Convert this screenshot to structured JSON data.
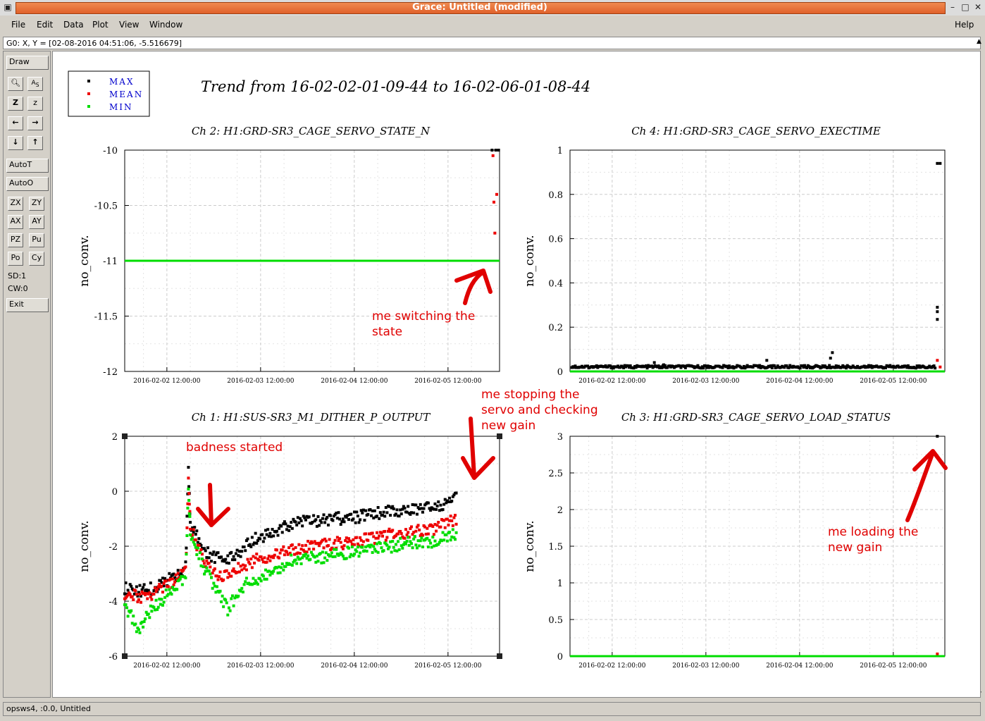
{
  "window": {
    "title": "Grace: Untitled (modified)"
  },
  "menu": {
    "file": "File",
    "edit": "Edit",
    "data": "Data",
    "plot": "Plot",
    "view": "View",
    "window": "Window",
    "help": "Help"
  },
  "locator": "G0: X, Y = [02-08-2016 04:51:06, -5.516679]",
  "tools": {
    "draw": "Draw",
    "autot": "AutoT",
    "autoo": "AutoO",
    "exit": "Exit",
    "zx": "ZX",
    "zy": "ZY",
    "ax": "AX",
    "ay": "AY",
    "pz": "PZ",
    "pu": "Pu",
    "po": "Po",
    "cy": "Cy",
    "sd": "SD:1",
    "cw": "CW:0"
  },
  "status": "opsws4, :0.0, Untitled",
  "colors": {
    "max": "#000000",
    "mean": "#ee0000",
    "min": "#00dd00",
    "legend_text": "#0000cc",
    "annotation": "#e00000"
  },
  "legend": [
    "MAX",
    "MEAN",
    "MIN"
  ],
  "main_title": "Trend from 16-02-02-01-09-44 to 16-02-06-01-08-44",
  "annotations": {
    "a1": "me switching the\nstate",
    "a2": "badness started",
    "a3": "me stopping the\nservo and checking\nnew gain",
    "a4": "me loading the\nnew gain"
  },
  "chart_data": [
    {
      "type": "scatter",
      "title": "Ch 2: H1:GRD-SR3_CAGE_SERVO_STATE_N",
      "ylabel": "no_conv.",
      "ylim": [
        -12,
        -10
      ],
      "yticks": [
        "-10",
        "-10.5",
        "-11",
        "-11.5",
        "-12"
      ],
      "xticks": [
        "2016-02-02 12:00:00",
        "2016-02-03 12:00:00",
        "2016-02-04 12:00:00",
        "2016-02-05 12:00:00"
      ],
      "grid": true,
      "series": [
        {
          "name": "MAX",
          "points": [
            [
              3.92,
              -10
            ],
            [
              3.96,
              -10
            ],
            [
              3.99,
              -10
            ]
          ]
        },
        {
          "name": "MEAN",
          "points": [
            [
              3.93,
              -10.05
            ],
            [
              3.94,
              -10.47
            ],
            [
              3.95,
              -10.75
            ],
            [
              3.97,
              -10.4
            ]
          ]
        },
        {
          "name": "MIN",
          "line": -11
        }
      ]
    },
    {
      "type": "scatter",
      "title": "Ch 4: H1:GRD-SR3_CAGE_SERVO_EXECTIME",
      "ylabel": "no_conv.",
      "ylim": [
        0,
        1
      ],
      "yticks": [
        "1",
        "0.8",
        "0.6",
        "0.4",
        "0.2",
        "0"
      ],
      "xticks": [
        "2016-02-02 12:00:00",
        "2016-02-03 12:00:00",
        "2016-02-04 12:00:00",
        "2016-02-05 12:00:00"
      ],
      "grid": true,
      "series": [
        {
          "name": "MAX",
          "baseline": 0.015,
          "points": [
            [
              3.92,
              0.94
            ],
            [
              3.95,
              0.94
            ],
            [
              3.92,
              0.29
            ],
            [
              3.92,
              0.27
            ],
            [
              3.92,
              0.235
            ],
            [
              1.0,
              0.03
            ],
            [
              2.8,
              0.085
            ],
            [
              2.78,
              0.06
            ],
            [
              2.1,
              0.05
            ],
            [
              0.9,
              0.04
            ]
          ]
        },
        {
          "name": "MEAN",
          "points": [
            [
              3.92,
              0.05
            ],
            [
              3.95,
              0.02
            ]
          ]
        },
        {
          "name": "MIN",
          "line": 0
        }
      ]
    },
    {
      "type": "scatter",
      "title": "Ch 1: H1:SUS-SR3_M1_DITHER_P_OUTPUT",
      "ylabel": "no_conv.",
      "ylim": [
        -7.5,
        3.2
      ],
      "yticks": [
        "2",
        "0",
        "-2",
        "-4",
        "-6"
      ],
      "xticks": [
        "2016-02-02 12:00:00",
        "2016-02-03 12:00:00",
        "2016-02-04 12:00:00",
        "2016-02-05 12:00:00"
      ],
      "grid": true,
      "series": [
        {
          "name": "MAX",
          "trend": [
            [
              0,
              -4.2
            ],
            [
              0.15,
              -4.3
            ],
            [
              0.3,
              -4.2
            ],
            [
              0.5,
              -3.7
            ],
            [
              0.65,
              -3.2
            ],
            [
              0.68,
              1.5
            ],
            [
              0.7,
              -1.0
            ],
            [
              0.85,
              -2.4
            ],
            [
              0.95,
              -2.7
            ],
            [
              1.1,
              -2.8
            ],
            [
              1.2,
              -2.6
            ],
            [
              1.3,
              -2.0
            ],
            [
              1.6,
              -1.4
            ],
            [
              1.8,
              -1.0
            ],
            [
              2.1,
              -0.9
            ],
            [
              2.5,
              -0.7
            ],
            [
              2.8,
              -0.5
            ],
            [
              3.0,
              -0.4
            ],
            [
              3.3,
              -0.3
            ],
            [
              3.55,
              0.2
            ]
          ]
        },
        {
          "name": "MEAN",
          "trend": [
            [
              0,
              -4.5
            ],
            [
              0.15,
              -4.6
            ],
            [
              0.3,
              -4.5
            ],
            [
              0.5,
              -3.9
            ],
            [
              0.65,
              -3.4
            ],
            [
              0.68,
              1.3
            ],
            [
              0.7,
              -1.2
            ],
            [
              0.85,
              -3.0
            ],
            [
              0.95,
              -3.5
            ],
            [
              1.1,
              -3.6
            ],
            [
              1.2,
              -3.3
            ],
            [
              1.3,
              -3.0
            ],
            [
              1.6,
              -2.5
            ],
            [
              1.8,
              -2.3
            ],
            [
              2.1,
              -2.1
            ],
            [
              2.5,
              -1.9
            ],
            [
              2.8,
              -1.6
            ],
            [
              3.0,
              -1.5
            ],
            [
              3.3,
              -1.3
            ],
            [
              3.55,
              -0.8
            ]
          ]
        },
        {
          "name": "MIN",
          "trend": [
            [
              0,
              -5.0
            ],
            [
              0.15,
              -6.2
            ],
            [
              0.3,
              -5.2
            ],
            [
              0.5,
              -4.3
            ],
            [
              0.65,
              -3.6
            ],
            [
              0.68,
              0.8
            ],
            [
              0.7,
              -1.4
            ],
            [
              0.85,
              -3.3
            ],
            [
              0.95,
              -4.0
            ],
            [
              1.1,
              -5.2
            ],
            [
              1.2,
              -4.5
            ],
            [
              1.3,
              -4.0
            ],
            [
              1.6,
              -3.3
            ],
            [
              1.8,
              -2.8
            ],
            [
              2.1,
              -2.7
            ],
            [
              2.5,
              -2.4
            ],
            [
              2.8,
              -2.2
            ],
            [
              3.0,
              -2.0
            ],
            [
              3.3,
              -1.9
            ],
            [
              3.55,
              -1.5
            ]
          ]
        }
      ]
    },
    {
      "type": "scatter",
      "title": "Ch 3: H1:GRD-SR3_CAGE_SERVO_LOAD_STATUS",
      "ylabel": "no_conv.",
      "ylim": [
        0,
        3
      ],
      "yticks": [
        "3",
        "2.5",
        "2",
        "1.5",
        "1",
        "0.5",
        "0"
      ],
      "xticks": [
        "2016-02-02 12:00:00",
        "2016-02-03 12:00:00",
        "2016-02-04 12:00:00",
        "2016-02-05 12:00:00"
      ],
      "grid": true,
      "series": [
        {
          "name": "MAX",
          "points": [
            [
              3.92,
              3.0
            ]
          ]
        },
        {
          "name": "MEAN",
          "points": [
            [
              3.92,
              0.03
            ]
          ]
        },
        {
          "name": "MIN",
          "line": 0
        }
      ]
    }
  ]
}
